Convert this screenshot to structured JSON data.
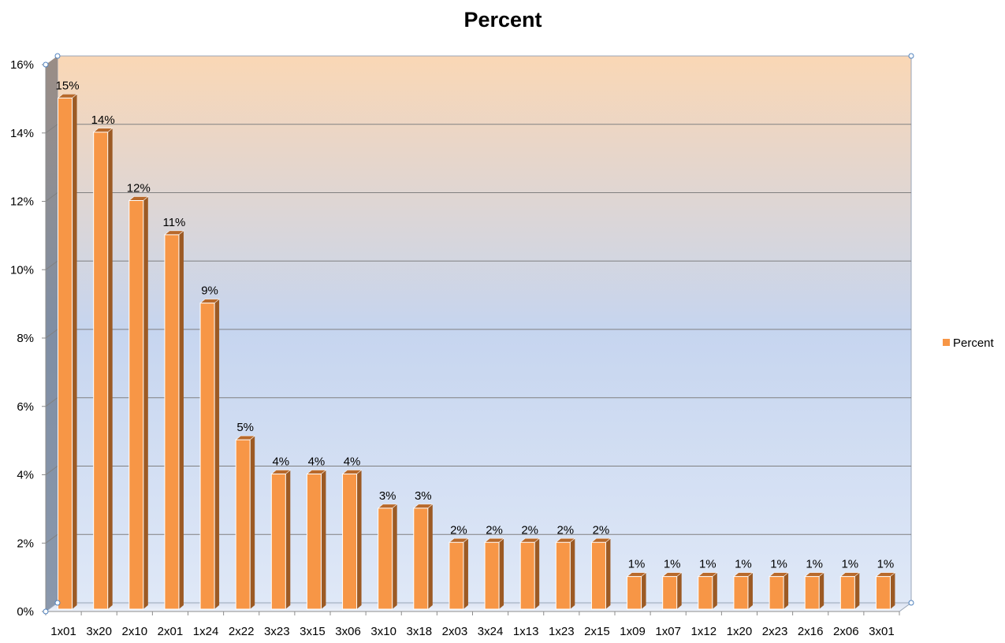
{
  "chart_data": {
    "type": "bar",
    "title": "Percent",
    "xlabel": "",
    "ylabel": "",
    "categories": [
      "1x01",
      "3x20",
      "2x10",
      "2x01",
      "1x24",
      "2x22",
      "3x23",
      "3x15",
      "3x06",
      "3x10",
      "3x18",
      "2x03",
      "3x24",
      "1x13",
      "1x23",
      "2x15",
      "1x09",
      "1x07",
      "1x12",
      "1x20",
      "2x23",
      "2x16",
      "2x06",
      "3x01"
    ],
    "series": [
      {
        "name": "Percent",
        "values": [
          15,
          14,
          12,
          11,
          9,
          5,
          4,
          4,
          4,
          3,
          3,
          2,
          2,
          2,
          2,
          2,
          1,
          1,
          1,
          1,
          1,
          1,
          1,
          1
        ],
        "data_labels": [
          "15%",
          "14%",
          "12%",
          "11%",
          "9%",
          "5%",
          "4%",
          "4%",
          "4%",
          "3%",
          "3%",
          "2%",
          "2%",
          "2%",
          "2%",
          "2%",
          "1%",
          "1%",
          "1%",
          "1%",
          "1%",
          "1%",
          "1%",
          "1%"
        ]
      }
    ],
    "ylim": [
      0,
      16
    ],
    "yticks": [
      0,
      2,
      4,
      6,
      8,
      10,
      12,
      14,
      16
    ],
    "ytick_labels": [
      "0%",
      "2%",
      "4%",
      "6%",
      "8%",
      "10%",
      "12%",
      "14%",
      "16%"
    ],
    "grid": true,
    "legend": {
      "placement": "right",
      "entries": [
        "Percent"
      ]
    },
    "colors": {
      "bar_front": "#f79646",
      "bar_side": "#9c5a24",
      "bar_top": "#b8692b",
      "wall_top": "#fad7b5",
      "wall_bottom": "#dfe8f7",
      "side_wall": "#8693a5",
      "gridline": "#808080"
    }
  }
}
